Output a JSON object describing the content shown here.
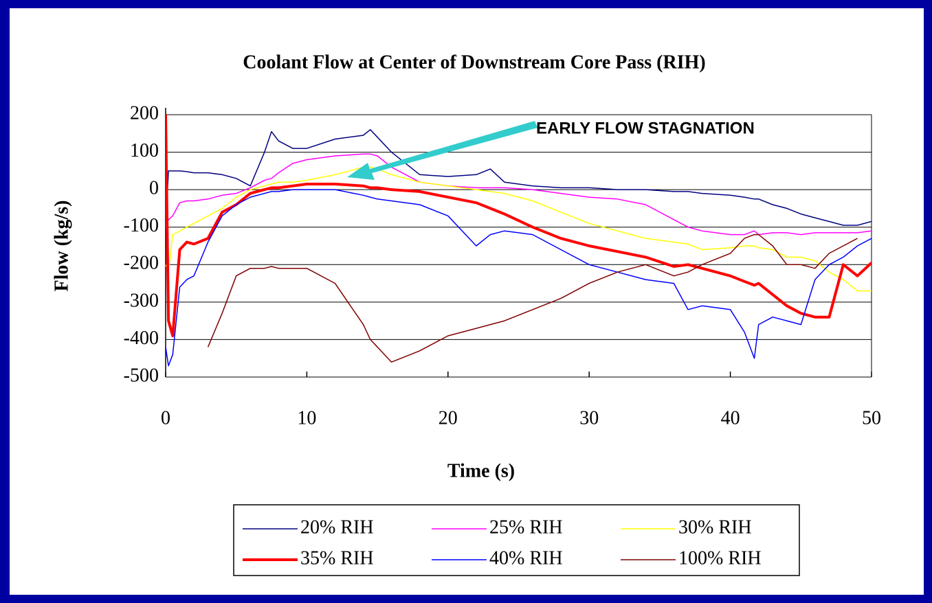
{
  "chart_data": {
    "type": "line",
    "title": "Coolant Flow at Center of Downstream Core Pass (RIH)",
    "x_label": "Time (s)",
    "y_label": "Flow (kg/s)",
    "annotation": "EARLY FLOW STAGNATION",
    "x": [
      0,
      0.2,
      0.5,
      1,
      1.5,
      2,
      3,
      4,
      5,
      6,
      7,
      7.5,
      8,
      9,
      10,
      12,
      14,
      14.5,
      15,
      16,
      18,
      20,
      22,
      23,
      24,
      26,
      28,
      30,
      32,
      34,
      36,
      37,
      38,
      40,
      41,
      41.7,
      42,
      43,
      44,
      45,
      46,
      47,
      48,
      49,
      50
    ],
    "xlim": [
      0,
      50
    ],
    "xticks": [
      0,
      10,
      20,
      30,
      40,
      50
    ],
    "ylim": [
      -500,
      200
    ],
    "yticks": [
      -500,
      -400,
      -300,
      -200,
      -100,
      0,
      100,
      200
    ],
    "grid": true,
    "series": [
      {
        "name": "20% RIH",
        "color": "#000080",
        "line_width": 1.5,
        "values": [
          -100,
          50,
          50,
          50,
          48,
          45,
          45,
          40,
          30,
          10,
          100,
          155,
          130,
          110,
          110,
          135,
          145,
          160,
          140,
          100,
          40,
          35,
          40,
          55,
          20,
          10,
          5,
          5,
          0,
          0,
          -5,
          -5,
          -10,
          -15,
          -20,
          -25,
          -25,
          -40,
          -50,
          -65,
          -75,
          -85,
          -95,
          -95,
          -85
        ]
      },
      {
        "name": "25% RIH",
        "color": "#ff00ff",
        "line_width": 1.5,
        "values": [
          -100,
          -80,
          -70,
          -35,
          -30,
          -30,
          -25,
          -15,
          -10,
          5,
          25,
          30,
          45,
          70,
          80,
          90,
          95,
          95,
          90,
          60,
          20,
          10,
          5,
          5,
          5,
          0,
          -10,
          -20,
          -25,
          -40,
          -80,
          -100,
          -110,
          -120,
          -120,
          -110,
          -120,
          -115,
          -115,
          -120,
          -115,
          -115,
          -115,
          -115,
          -110
        ]
      },
      {
        "name": "30% RIH",
        "color": "#ffff00",
        "line_width": 1.5,
        "values": [
          -200,
          -220,
          -120,
          -110,
          -100,
          -90,
          -70,
          -50,
          -20,
          0,
          10,
          15,
          20,
          20,
          25,
          40,
          60,
          60,
          55,
          40,
          20,
          10,
          0,
          -5,
          -10,
          -30,
          -60,
          -90,
          -110,
          -130,
          -140,
          -145,
          -160,
          -155,
          -150,
          -150,
          -155,
          -160,
          -180,
          -180,
          -190,
          -220,
          -240,
          -270,
          -270
        ]
      },
      {
        "name": "35% RIH",
        "color": "#ff0000",
        "line_width": 4,
        "values": [
          200,
          -350,
          -390,
          -160,
          -140,
          -145,
          -130,
          -60,
          -40,
          -10,
          0,
          5,
          5,
          10,
          15,
          15,
          10,
          5,
          5,
          0,
          -5,
          -20,
          -35,
          -50,
          -65,
          -100,
          -130,
          -150,
          -165,
          -180,
          -205,
          -200,
          -210,
          -230,
          -245,
          -255,
          -250,
          -280,
          -310,
          -330,
          -340,
          -340,
          -200,
          -230,
          -195
        ]
      },
      {
        "name": "40% RIH",
        "color": "#0000ff",
        "line_width": 1.5,
        "values": [
          -420,
          -470,
          -440,
          -260,
          -240,
          -230,
          -140,
          -70,
          -40,
          -20,
          -10,
          -5,
          -5,
          0,
          0,
          0,
          -15,
          -20,
          -25,
          -30,
          -40,
          -70,
          -150,
          -120,
          -110,
          -120,
          -160,
          -200,
          -220,
          -240,
          -250,
          -320,
          -310,
          -320,
          -380,
          -450,
          -360,
          -340,
          -350,
          -360,
          -240,
          -200,
          -180,
          -150,
          -130
        ]
      },
      {
        "name": "100% RIH",
        "color": "#800000",
        "line_width": 1.5,
        "values": [
          null,
          null,
          null,
          null,
          null,
          null,
          -420,
          -330,
          -230,
          -210,
          -210,
          -205,
          -210,
          -210,
          -210,
          -250,
          -360,
          -400,
          -420,
          -460,
          -430,
          -390,
          -370,
          -360,
          -350,
          -320,
          -290,
          -250,
          -220,
          -200,
          -230,
          -220,
          -200,
          -170,
          -130,
          -120,
          -120,
          -150,
          -200,
          -200,
          -210,
          -170,
          -150,
          -130,
          null
        ]
      }
    ]
  }
}
